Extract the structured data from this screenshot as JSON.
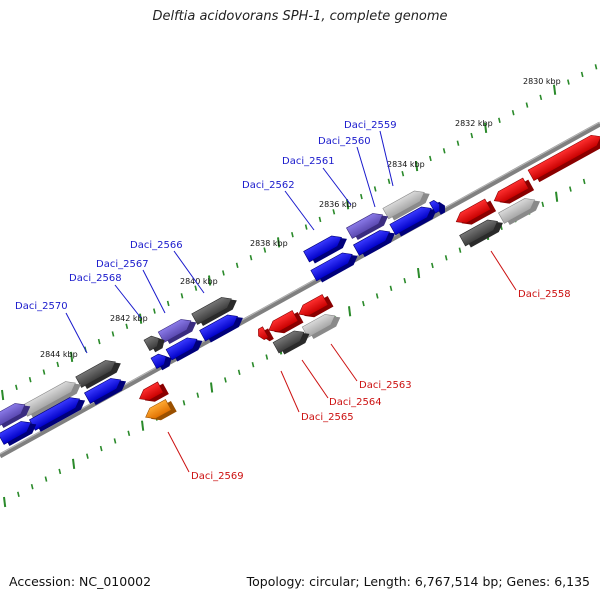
{
  "title": "Delftia acidovorans SPH-1, complete genome",
  "footer": {
    "accession": "Accession: NC_010002",
    "summary": "Topology: circular; Length: 6,767,514 bp; Genes: 6,135"
  },
  "colors": {
    "backbone": "#808080",
    "forward_label": "#1a1acc",
    "reverse_label": "#cc1111",
    "ticks": "#2a8a2a",
    "blue": "#0a0af0",
    "red": "#f01010",
    "purple": "#6a5acd",
    "dark_gray": "#555555",
    "light_gray": "#c0c0c0",
    "orange": "#ff8c00"
  },
  "scale_labels": [
    "2830 kbp",
    "2832 kbp",
    "2834 kbp",
    "2836 kbp",
    "2838 kbp",
    "2840 kbp",
    "2842 kbp",
    "2844 kbp"
  ],
  "forward_genes": [
    "Daci_2559",
    "Daci_2560",
    "Daci_2561",
    "Daci_2562",
    "Daci_2566",
    "Daci_2567",
    "Daci_2568",
    "Daci_2570"
  ],
  "reverse_genes": [
    "Daci_2558",
    "Daci_2563",
    "Daci_2564",
    "Daci_2565",
    "Daci_2569"
  ]
}
